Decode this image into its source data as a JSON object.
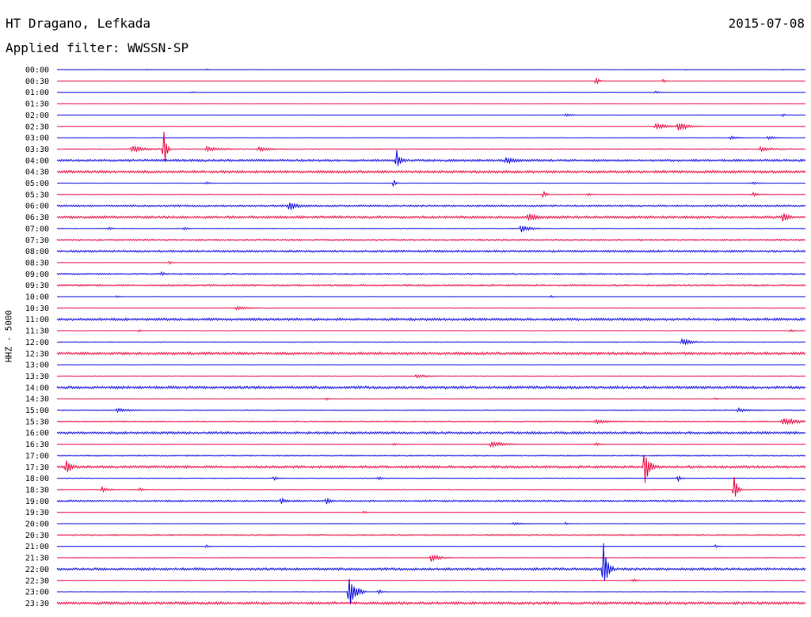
{
  "header": {
    "station": "HT Dragano, Lefkada",
    "date": "2015-07-08",
    "filter": "Applied filter: WWSSN-SP"
  },
  "colors": {
    "blue": "#0000dd",
    "red": "#e8003c",
    "background": "#ffffff"
  },
  "chart_data": {
    "type": "seismogram",
    "title": "HT Dragano, Lefkada",
    "date": "2015-07-08",
    "filter": "Applied filter: WWSSN-SP",
    "ylabel": "HHZ - 5000",
    "trace_minutes": 30,
    "grid": false,
    "traces": [
      {
        "label": "00:00",
        "color": "blue",
        "noise": 0.3,
        "events": [
          [
            12,
            0.8,
            0.3
          ],
          [
            20,
            0.8,
            0.3
          ],
          [
            84,
            0.8,
            0.2
          ],
          [
            97,
            0.7,
            0.2
          ]
        ]
      },
      {
        "label": "00:30",
        "color": "red",
        "noise": 0.2,
        "events": [
          [
            72,
            5,
            0.4
          ],
          [
            81,
            3,
            0.3
          ]
        ]
      },
      {
        "label": "01:00",
        "color": "blue",
        "noise": 0.3,
        "events": [
          [
            18,
            0.8,
            0.3
          ],
          [
            80,
            1.5,
            0.6
          ]
        ]
      },
      {
        "label": "01:30",
        "color": "red",
        "noise": 0.2,
        "events": []
      },
      {
        "label": "02:00",
        "color": "blue",
        "noise": 0.3,
        "events": [
          [
            68,
            2,
            0.8
          ],
          [
            97,
            3,
            0.2
          ]
        ]
      },
      {
        "label": "02:30",
        "color": "red",
        "noise": 0.3,
        "events": [
          [
            80,
            4,
            1.5
          ],
          [
            83,
            5,
            1.2
          ]
        ]
      },
      {
        "label": "03:00",
        "color": "blue",
        "noise": 0.3,
        "events": [
          [
            90,
            2,
            1.0
          ],
          [
            95,
            2,
            1.0
          ]
        ]
      },
      {
        "label": "03:30",
        "color": "red",
        "noise": 0.6,
        "events": [
          [
            14.3,
            32,
            0.3
          ],
          [
            10,
            4,
            1.5
          ],
          [
            20,
            3,
            1.5
          ],
          [
            27,
            3,
            1.2
          ],
          [
            94,
            3,
            1.2
          ]
        ]
      },
      {
        "label": "04:00",
        "color": "blue",
        "noise": 1.4,
        "events": [
          [
            45.4,
            12,
            0.4
          ],
          [
            60,
            3,
            1.0
          ]
        ]
      },
      {
        "label": "04:30",
        "color": "red",
        "noise": 1.6,
        "events": []
      },
      {
        "label": "05:00",
        "color": "blue",
        "noise": 0.3,
        "events": [
          [
            20,
            1.5,
            0.4
          ],
          [
            45,
            5,
            0.3
          ],
          [
            93,
            1.5,
            0.8
          ]
        ]
      },
      {
        "label": "05:30",
        "color": "red",
        "noise": 0.5,
        "events": [
          [
            65,
            5,
            0.3
          ],
          [
            71,
            2,
            0.4
          ],
          [
            93,
            2,
            0.7
          ]
        ]
      },
      {
        "label": "06:00",
        "color": "blue",
        "noise": 1.2,
        "events": [
          [
            31,
            6,
            0.8
          ]
        ]
      },
      {
        "label": "06:30",
        "color": "red",
        "noise": 1.5,
        "events": [
          [
            63,
            4,
            1.0
          ],
          [
            97,
            6,
            0.5
          ]
        ]
      },
      {
        "label": "07:00",
        "color": "blue",
        "noise": 0.5,
        "events": [
          [
            7,
            2,
            0.3
          ],
          [
            17,
            2,
            0.4
          ],
          [
            62,
            4,
            1.2
          ]
        ]
      },
      {
        "label": "07:30",
        "color": "red",
        "noise": 1.0,
        "events": []
      },
      {
        "label": "08:00",
        "color": "blue",
        "noise": 1.3,
        "events": []
      },
      {
        "label": "08:30",
        "color": "red",
        "noise": 0.3,
        "events": [
          [
            15,
            2,
            0.3
          ]
        ]
      },
      {
        "label": "09:00",
        "color": "blue",
        "noise": 0.9,
        "events": [
          [
            14,
            2,
            0.4
          ]
        ]
      },
      {
        "label": "09:30",
        "color": "red",
        "noise": 1.1,
        "events": []
      },
      {
        "label": "10:00",
        "color": "blue",
        "noise": 0.3,
        "events": [
          [
            8,
            1.5,
            0.3
          ],
          [
            66,
            1.5,
            0.3
          ]
        ]
      },
      {
        "label": "10:30",
        "color": "red",
        "noise": 0.4,
        "events": [
          [
            24,
            2,
            1.5
          ]
        ]
      },
      {
        "label": "11:00",
        "color": "blue",
        "noise": 1.5,
        "events": []
      },
      {
        "label": "11:30",
        "color": "red",
        "noise": 0.3,
        "events": [
          [
            11,
            2,
            0.3
          ],
          [
            98,
            2,
            0.5
          ]
        ]
      },
      {
        "label": "12:00",
        "color": "blue",
        "noise": 0.5,
        "events": [
          [
            83.5,
            5,
            1.0
          ]
        ]
      },
      {
        "label": "12:30",
        "color": "red",
        "noise": 1.6,
        "events": []
      },
      {
        "label": "13:00",
        "color": "blue",
        "noise": 0.3,
        "events": []
      },
      {
        "label": "13:30",
        "color": "red",
        "noise": 0.4,
        "events": [
          [
            48,
            2,
            1.5
          ]
        ]
      },
      {
        "label": "14:00",
        "color": "blue",
        "noise": 1.6,
        "events": []
      },
      {
        "label": "14:30",
        "color": "red",
        "noise": 0.3,
        "events": [
          [
            36,
            2,
            0.3
          ],
          [
            88,
            1.5,
            0.3
          ]
        ]
      },
      {
        "label": "15:00",
        "color": "blue",
        "noise": 0.6,
        "events": [
          [
            8,
            2,
            1.5
          ],
          [
            91,
            2,
            1.5
          ]
        ]
      },
      {
        "label": "15:30",
        "color": "red",
        "noise": 0.8,
        "events": [
          [
            72,
            2,
            1.5
          ],
          [
            97,
            5,
            1.5
          ]
        ]
      },
      {
        "label": "16:00",
        "color": "blue",
        "noise": 1.5,
        "events": []
      },
      {
        "label": "16:30",
        "color": "red",
        "noise": 0.4,
        "events": [
          [
            45,
            2,
            0.3
          ],
          [
            58,
            4,
            1.5
          ],
          [
            72,
            2,
            0.5
          ]
        ]
      },
      {
        "label": "17:00",
        "color": "blue",
        "noise": 0.8,
        "events": []
      },
      {
        "label": "17:30",
        "color": "red",
        "noise": 1.5,
        "events": [
          [
            1.3,
            14,
            0.4
          ],
          [
            78.5,
            30,
            0.5
          ]
        ]
      },
      {
        "label": "18:00",
        "color": "blue",
        "noise": 0.5,
        "events": [
          [
            29,
            2,
            0.4
          ],
          [
            43,
            2,
            0.4
          ],
          [
            83,
            5,
            0.3
          ]
        ]
      },
      {
        "label": "18:30",
        "color": "red",
        "noise": 0.5,
        "events": [
          [
            6,
            3,
            0.8
          ],
          [
            11,
            2,
            0.5
          ],
          [
            90.5,
            18,
            0.4
          ]
        ]
      },
      {
        "label": "19:00",
        "color": "blue",
        "noise": 1.1,
        "events": [
          [
            30,
            4,
            0.4
          ],
          [
            36,
            4,
            0.4
          ]
        ]
      },
      {
        "label": "19:30",
        "color": "red",
        "noise": 0.3,
        "events": [
          [
            41,
            2,
            0.3
          ]
        ]
      },
      {
        "label": "20:00",
        "color": "blue",
        "noise": 0.3,
        "events": [
          [
            61,
            2,
            1.2
          ],
          [
            68,
            2,
            0.3
          ]
        ]
      },
      {
        "label": "20:30",
        "color": "red",
        "noise": 0.9,
        "events": []
      },
      {
        "label": "21:00",
        "color": "blue",
        "noise": 0.3,
        "events": [
          [
            20,
            2,
            0.3
          ],
          [
            88,
            2,
            0.3
          ]
        ]
      },
      {
        "label": "21:30",
        "color": "red",
        "noise": 0.5,
        "events": [
          [
            50,
            5,
            1.0
          ]
        ]
      },
      {
        "label": "22:00",
        "color": "blue",
        "noise": 1.5,
        "events": [
          [
            73,
            36,
            0.5
          ]
        ]
      },
      {
        "label": "22:30",
        "color": "red",
        "noise": 0.4,
        "events": [
          [
            77,
            2,
            0.5
          ]
        ]
      },
      {
        "label": "23:00",
        "color": "blue",
        "noise": 0.4,
        "events": [
          [
            39,
            26,
            0.8
          ],
          [
            43,
            3,
            0.4
          ]
        ]
      },
      {
        "label": "23:30",
        "color": "red",
        "noise": 1.6,
        "events": []
      }
    ]
  }
}
